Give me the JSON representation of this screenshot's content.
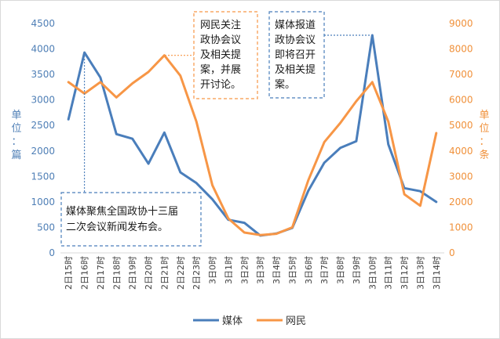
{
  "chart_data": {
    "type": "line",
    "categories": [
      "2日15时",
      "2日16时",
      "2日17时",
      "2日18时",
      "2日19时",
      "2日20时",
      "2日21时",
      "2日22时",
      "2日23时",
      "3日0时",
      "3日1时",
      "3日2时",
      "3日3时",
      "3日4时",
      "3日5时",
      "3日6时",
      "3日7时",
      "3日8时",
      "3日9时",
      "3日10时",
      "3日11时",
      "3日12时",
      "3日13时",
      "3日14时"
    ],
    "series": [
      {
        "name": "媒体",
        "axis": "left",
        "color": "#4a7ebb",
        "values": [
          2620,
          3930,
          3440,
          2330,
          2240,
          1750,
          2360,
          1580,
          1370,
          1050,
          650,
          590,
          340,
          380,
          490,
          1220,
          1770,
          2060,
          2190,
          4270,
          2130,
          1270,
          1210,
          1000
        ]
      },
      {
        "name": "网民",
        "axis": "right",
        "color": "#f79646",
        "values": [
          6700,
          6250,
          6700,
          6100,
          6650,
          7100,
          7750,
          6950,
          5150,
          2650,
          1350,
          800,
          700,
          750,
          1000,
          2850,
          4350,
          5100,
          5950,
          6700,
          5150,
          2300,
          1850,
          4700
        ]
      }
    ],
    "y_left": {
      "label": "单位：篇",
      "min": 0,
      "max": 4500,
      "step": 500,
      "ticks": [
        "0",
        "500",
        "1000",
        "1500",
        "2000",
        "2500",
        "3000",
        "3500",
        "4000",
        "4500"
      ]
    },
    "y_right": {
      "label": "单位：条",
      "min": 0,
      "max": 9000,
      "step": 1000,
      "ticks": [
        "0",
        "1000",
        "2000",
        "3000",
        "4000",
        "5000",
        "6000",
        "7000",
        "8000",
        "9000"
      ]
    },
    "grid": false,
    "legend_position": "bottom",
    "annotations": [
      {
        "key": "a1",
        "text_lines": [
          "媒体聚焦全国政协十三届",
          "二次会议新闻发布会。"
        ],
        "target_index": 1,
        "target_series": 0,
        "color": "#4a7ebb"
      },
      {
        "key": "a2",
        "text_lines": [
          "网民关注",
          "政协会议",
          "及相关提",
          "案，并展",
          "开讨论。"
        ],
        "target_index": 6,
        "target_series": 1,
        "color": "#f79646"
      },
      {
        "key": "a3",
        "text_lines": [
          "媒体报道",
          "政协会议",
          "即将召开",
          "及相关提",
          "案。"
        ],
        "target_index": 19,
        "target_series": 0,
        "color": "#4a7ebb"
      }
    ]
  }
}
